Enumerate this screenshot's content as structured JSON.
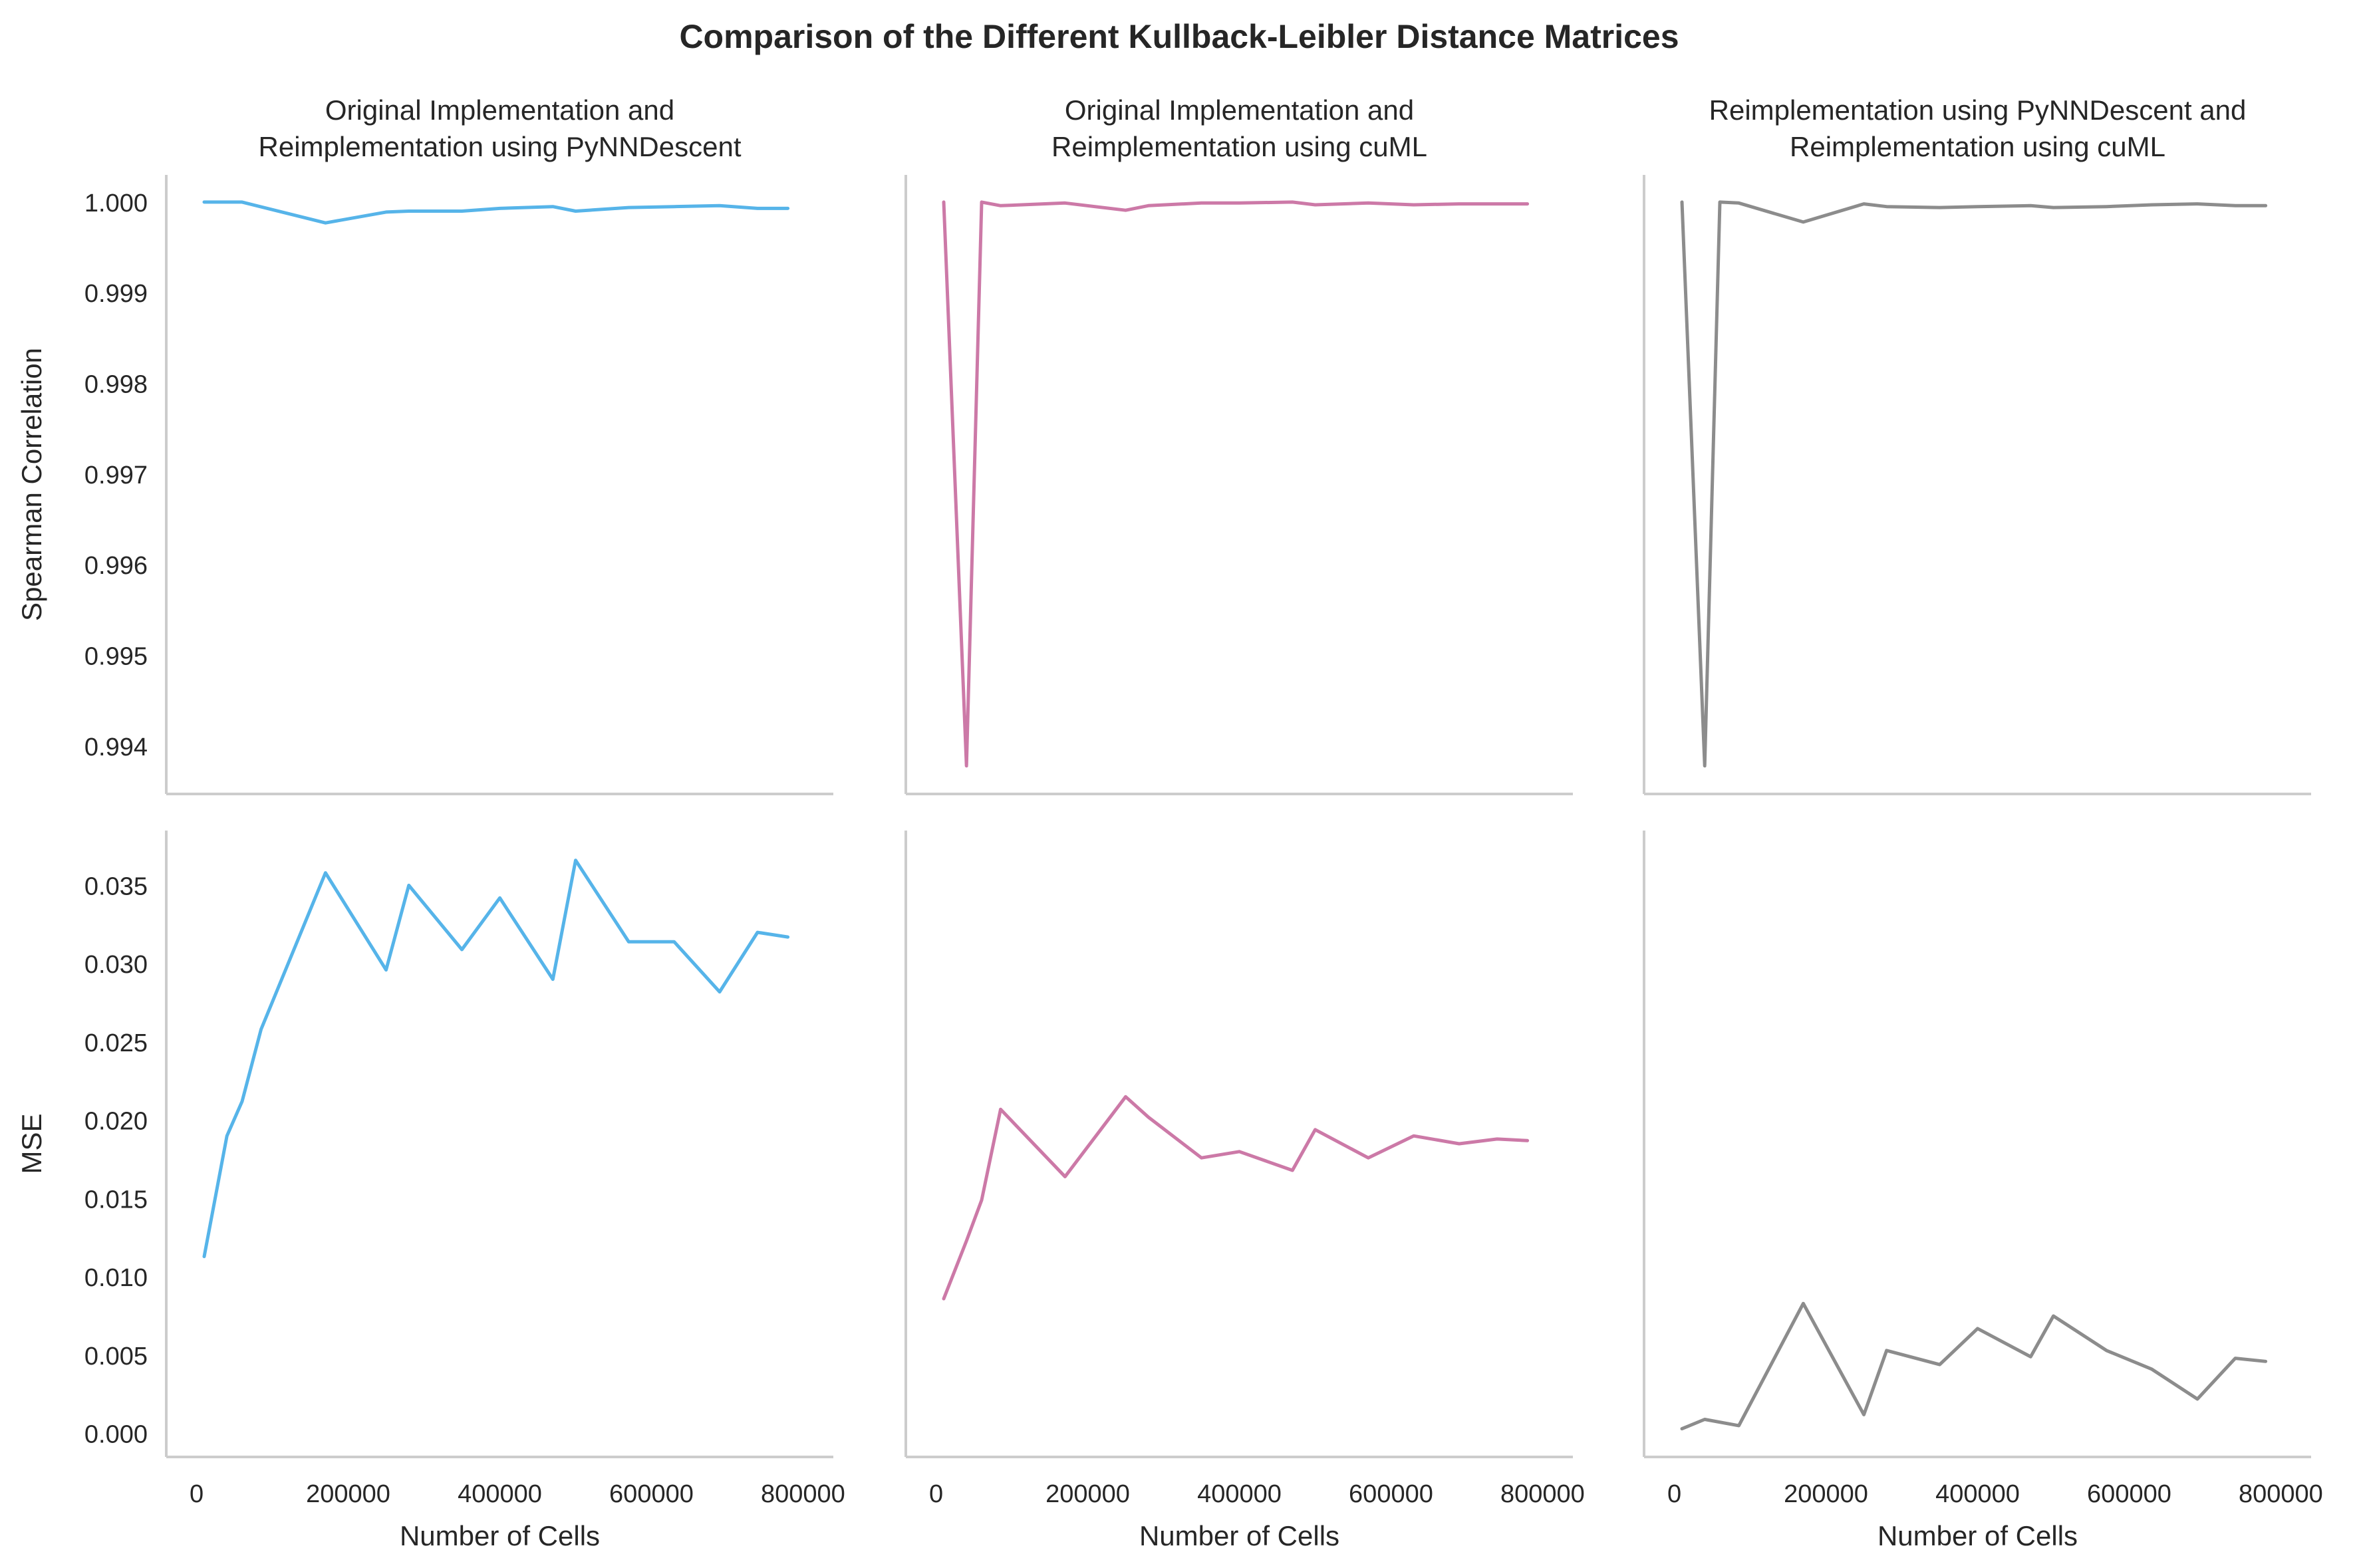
{
  "figure": {
    "title": "Comparison of the Different Kullback-Leibler Distance Matrices"
  },
  "chart_data": [
    {
      "type": "line",
      "panel": "top-left",
      "title": "Original Implementation and\nReimplementation using PyNNDescent",
      "xlabel": "",
      "ylabel": "Spearman Correlation",
      "xlim": [
        -40000,
        840000
      ],
      "ylim": [
        0.99347,
        1.0003
      ],
      "x_ticks": [],
      "y_ticks": [
        0.994,
        0.995,
        0.996,
        0.997,
        0.998,
        0.999,
        1.0
      ],
      "y_tick_labels": [
        "0.994",
        "0.995",
        "0.996",
        "0.997",
        "0.998",
        "0.999",
        "1.000"
      ],
      "color": "#56b4e9",
      "x": [
        10000,
        60000,
        170000,
        250000,
        280000,
        350000,
        400000,
        470000,
        500000,
        570000,
        630000,
        690000,
        740000,
        780000
      ],
      "values": [
        1.0,
        1.0,
        0.99977,
        0.99989,
        0.9999,
        0.9999,
        0.99993,
        0.99995,
        0.9999,
        0.99994,
        0.99995,
        0.99996,
        0.99993,
        0.99993
      ]
    },
    {
      "type": "line",
      "panel": "top-middle",
      "title": "Original Implementation and\nReimplementation using cuML",
      "xlabel": "",
      "ylabel": "",
      "xlim": [
        -40000,
        840000
      ],
      "ylim": [
        0.99347,
        1.0003
      ],
      "x_ticks": [],
      "y_ticks": [],
      "y_tick_labels": [],
      "color": "#cc79a7",
      "x": [
        10000,
        40000,
        60000,
        85000,
        170000,
        250000,
        280000,
        350000,
        400000,
        470000,
        500000,
        570000,
        630000,
        690000,
        740000,
        780000
      ],
      "values": [
        1.0,
        0.99378,
        1.0,
        0.99996,
        0.99999,
        0.99991,
        0.99996,
        0.99999,
        0.99999,
        1.0,
        0.99997,
        0.99999,
        0.99997,
        0.99998,
        0.99998,
        0.99998
      ]
    },
    {
      "type": "line",
      "panel": "top-right",
      "title": "Reimplementation using PyNNDescent and\nReimplementation using cuML",
      "xlabel": "",
      "ylabel": "",
      "xlim": [
        -40000,
        840000
      ],
      "ylim": [
        0.99347,
        1.0003
      ],
      "x_ticks": [],
      "y_ticks": [],
      "y_tick_labels": [],
      "color": "#8c8c8c",
      "x": [
        10000,
        40000,
        60000,
        85000,
        170000,
        250000,
        280000,
        350000,
        400000,
        470000,
        500000,
        570000,
        630000,
        690000,
        740000,
        780000
      ],
      "values": [
        1.0,
        0.99378,
        1.0,
        0.99999,
        0.99978,
        0.99998,
        0.99995,
        0.99994,
        0.99995,
        0.99996,
        0.99994,
        0.99995,
        0.99997,
        0.99998,
        0.99996,
        0.99996
      ]
    },
    {
      "type": "line",
      "panel": "bottom-left",
      "title": "",
      "xlabel": "Number of Cells",
      "ylabel": "MSE",
      "xlim": [
        -40000,
        840000
      ],
      "ylim": [
        -0.0015,
        0.0385
      ],
      "x_ticks": [
        0,
        200000,
        400000,
        600000,
        800000
      ],
      "x_tick_labels": [
        "0",
        "200000",
        "400000",
        "600000",
        "800000"
      ],
      "y_ticks": [
        0.0,
        0.005,
        0.01,
        0.015,
        0.02,
        0.025,
        0.03,
        0.035
      ],
      "y_tick_labels": [
        "0.000",
        "0.005",
        "0.010",
        "0.015",
        "0.020",
        "0.025",
        "0.030",
        "0.035"
      ],
      "color": "#56b4e9",
      "x": [
        10000,
        40000,
        60000,
        85000,
        170000,
        250000,
        280000,
        350000,
        400000,
        470000,
        500000,
        570000,
        630000,
        690000,
        740000,
        780000
      ],
      "values": [
        0.0113,
        0.019,
        0.0212,
        0.0258,
        0.0358,
        0.0296,
        0.035,
        0.0309,
        0.0342,
        0.029,
        0.0366,
        0.0314,
        0.0314,
        0.0282,
        0.032,
        0.0317
      ]
    },
    {
      "type": "line",
      "panel": "bottom-middle",
      "title": "",
      "xlabel": "Number of Cells",
      "ylabel": "",
      "xlim": [
        -40000,
        840000
      ],
      "ylim": [
        -0.0015,
        0.0385
      ],
      "x_ticks": [
        0,
        200000,
        400000,
        600000,
        800000
      ],
      "x_tick_labels": [
        "0",
        "200000",
        "400000",
        "600000",
        "800000"
      ],
      "y_ticks": [],
      "y_tick_labels": [],
      "color": "#cc79a7",
      "x": [
        10000,
        40000,
        60000,
        85000,
        170000,
        250000,
        280000,
        350000,
        400000,
        470000,
        500000,
        570000,
        630000,
        690000,
        740000,
        780000
      ],
      "values": [
        0.0086,
        0.0123,
        0.0149,
        0.0207,
        0.0164,
        0.0215,
        0.0202,
        0.0176,
        0.018,
        0.0168,
        0.0194,
        0.0176,
        0.019,
        0.0185,
        0.0188,
        0.0187
      ]
    },
    {
      "type": "line",
      "panel": "bottom-right",
      "title": "",
      "xlabel": "Number of Cells",
      "ylabel": "",
      "xlim": [
        -40000,
        840000
      ],
      "ylim": [
        -0.0015,
        0.0385
      ],
      "x_ticks": [
        0,
        200000,
        400000,
        600000,
        800000
      ],
      "x_tick_labels": [
        "0",
        "200000",
        "400000",
        "600000",
        "800000"
      ],
      "y_ticks": [],
      "y_tick_labels": [],
      "color": "#8c8c8c",
      "x": [
        10000,
        40000,
        85000,
        170000,
        250000,
        280000,
        350000,
        400000,
        470000,
        500000,
        570000,
        630000,
        690000,
        740000,
        780000
      ],
      "values": [
        0.0003,
        0.0009,
        0.0005,
        0.0083,
        0.0012,
        0.0053,
        0.0044,
        0.0067,
        0.0049,
        0.0075,
        0.0053,
        0.0041,
        0.0022,
        0.0048,
        0.0046
      ]
    }
  ]
}
